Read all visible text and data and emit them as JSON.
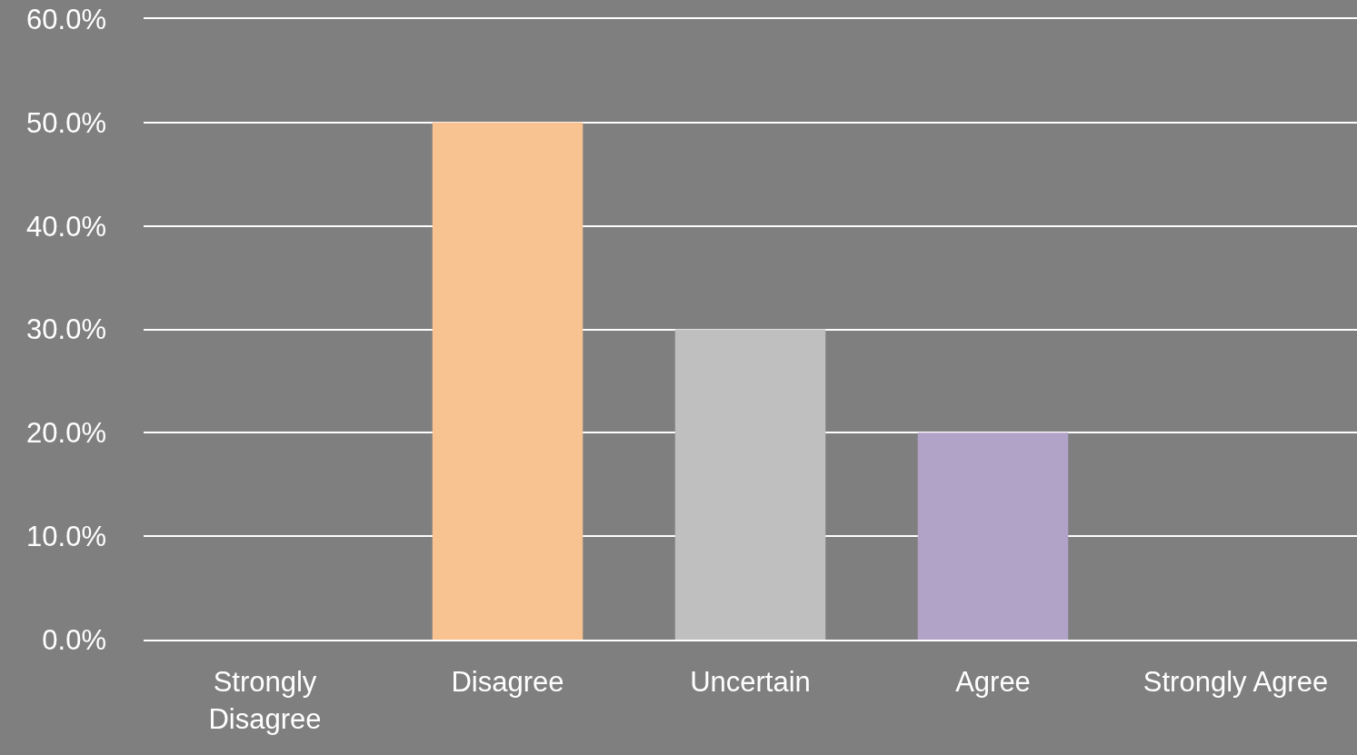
{
  "chart_data": {
    "type": "bar",
    "categories": [
      "Strongly Disagree",
      "Disagree",
      "Uncertain",
      "Agree",
      "Strongly Agree"
    ],
    "values": [
      0,
      50,
      30,
      20,
      0
    ],
    "colors": [
      null,
      "#f8c291",
      "#bfbfbf",
      "#b1a2c7",
      null
    ],
    "ylim": [
      0,
      60
    ],
    "yticks": [
      {
        "value": 0,
        "label": "0.0%"
      },
      {
        "value": 10,
        "label": "10.0%"
      },
      {
        "value": 20,
        "label": "20.0%"
      },
      {
        "value": 30,
        "label": "30.0%"
      },
      {
        "value": 40,
        "label": "40.0%"
      },
      {
        "value": 50,
        "label": "50.0%"
      },
      {
        "value": 60,
        "label": "60.0%"
      }
    ],
    "grid": "y"
  }
}
